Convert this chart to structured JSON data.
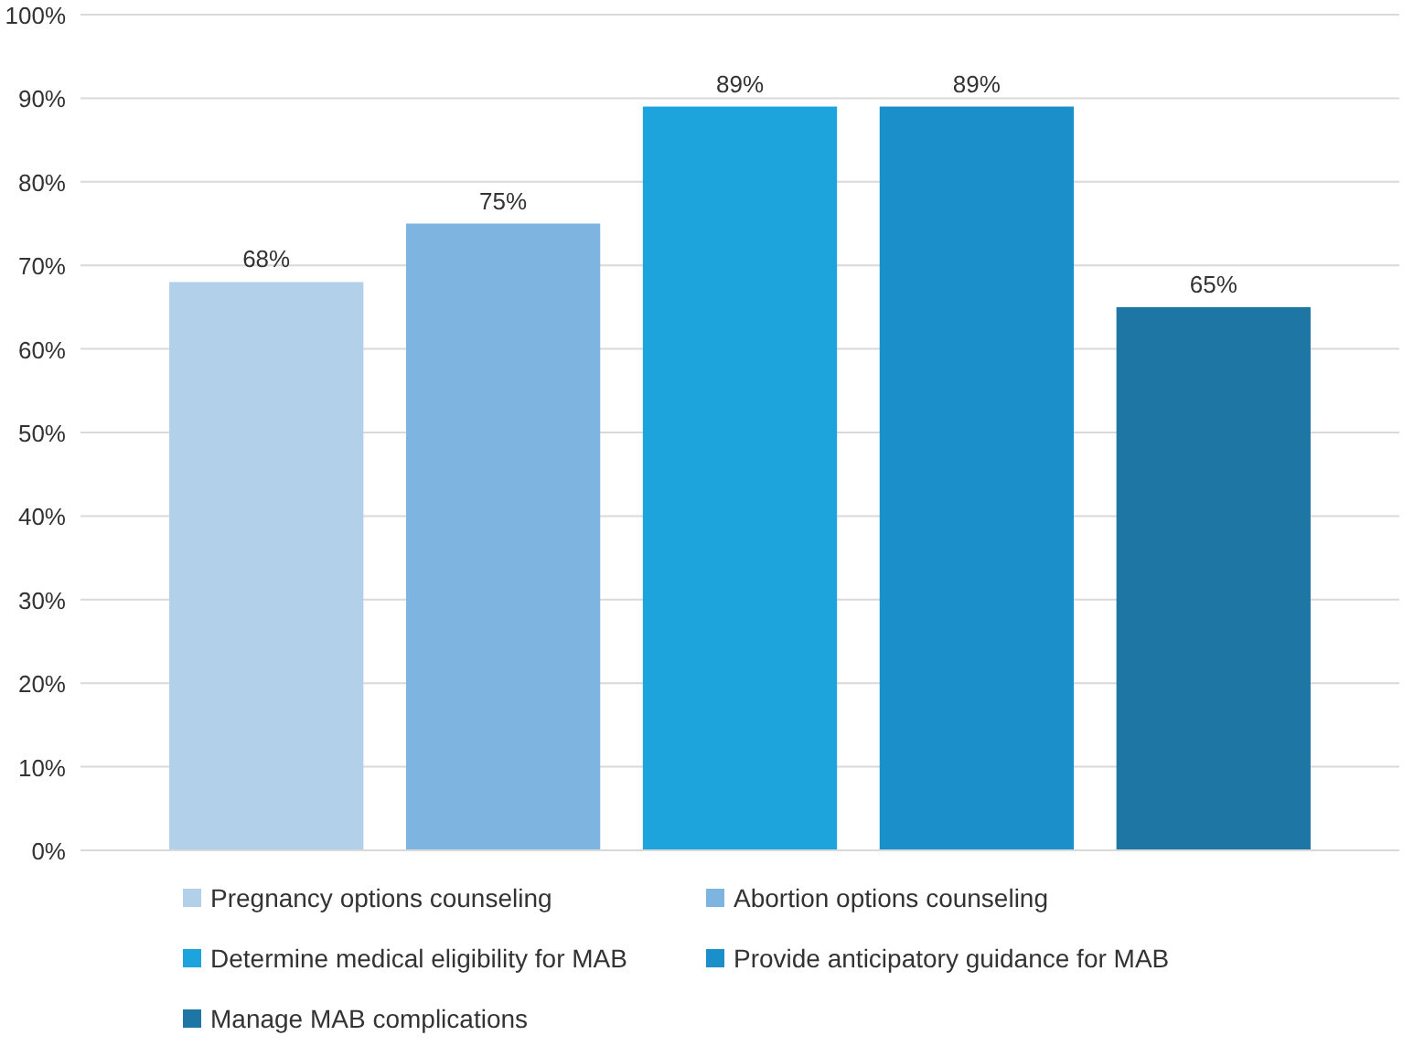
{
  "chart_data": {
    "type": "bar",
    "categories": [
      null
    ],
    "series": [
      {
        "name": "Pregnancy options counseling",
        "color": "#b3d0ea",
        "values": [
          68
        ],
        "value_labels": [
          "68%"
        ]
      },
      {
        "name": "Abortion options counseling",
        "color": "#7db5e0",
        "values": [
          75
        ],
        "value_labels": [
          "75%"
        ]
      },
      {
        "name": "Determine medical eligibility for MAB",
        "color": "#1ea4dd",
        "values": [
          89
        ],
        "value_labels": [
          "89%"
        ]
      },
      {
        "name": "Provide anticipatory guidance for MAB",
        "color": "#1a8fca",
        "values": [
          89
        ],
        "value_labels": [
          "89%"
        ]
      },
      {
        "name": "Manage MAB complications",
        "color": "#1e76a5",
        "values": [
          65
        ],
        "value_labels": [
          "65%"
        ]
      }
    ],
    "ylim": [
      0,
      100
    ],
    "yticks": [
      {
        "value": 0,
        "label": "0%"
      },
      {
        "value": 10,
        "label": "10%"
      },
      {
        "value": 20,
        "label": "20%"
      },
      {
        "value": 30,
        "label": "30%"
      },
      {
        "value": 40,
        "label": "40%"
      },
      {
        "value": 50,
        "label": "50%"
      },
      {
        "value": 60,
        "label": "60%"
      },
      {
        "value": 70,
        "label": "70%"
      },
      {
        "value": 80,
        "label": "80%"
      },
      {
        "value": 90,
        "label": "90%"
      },
      {
        "value": 100,
        "label": "100%"
      }
    ],
    "grid": "y",
    "legend": "bottom"
  }
}
